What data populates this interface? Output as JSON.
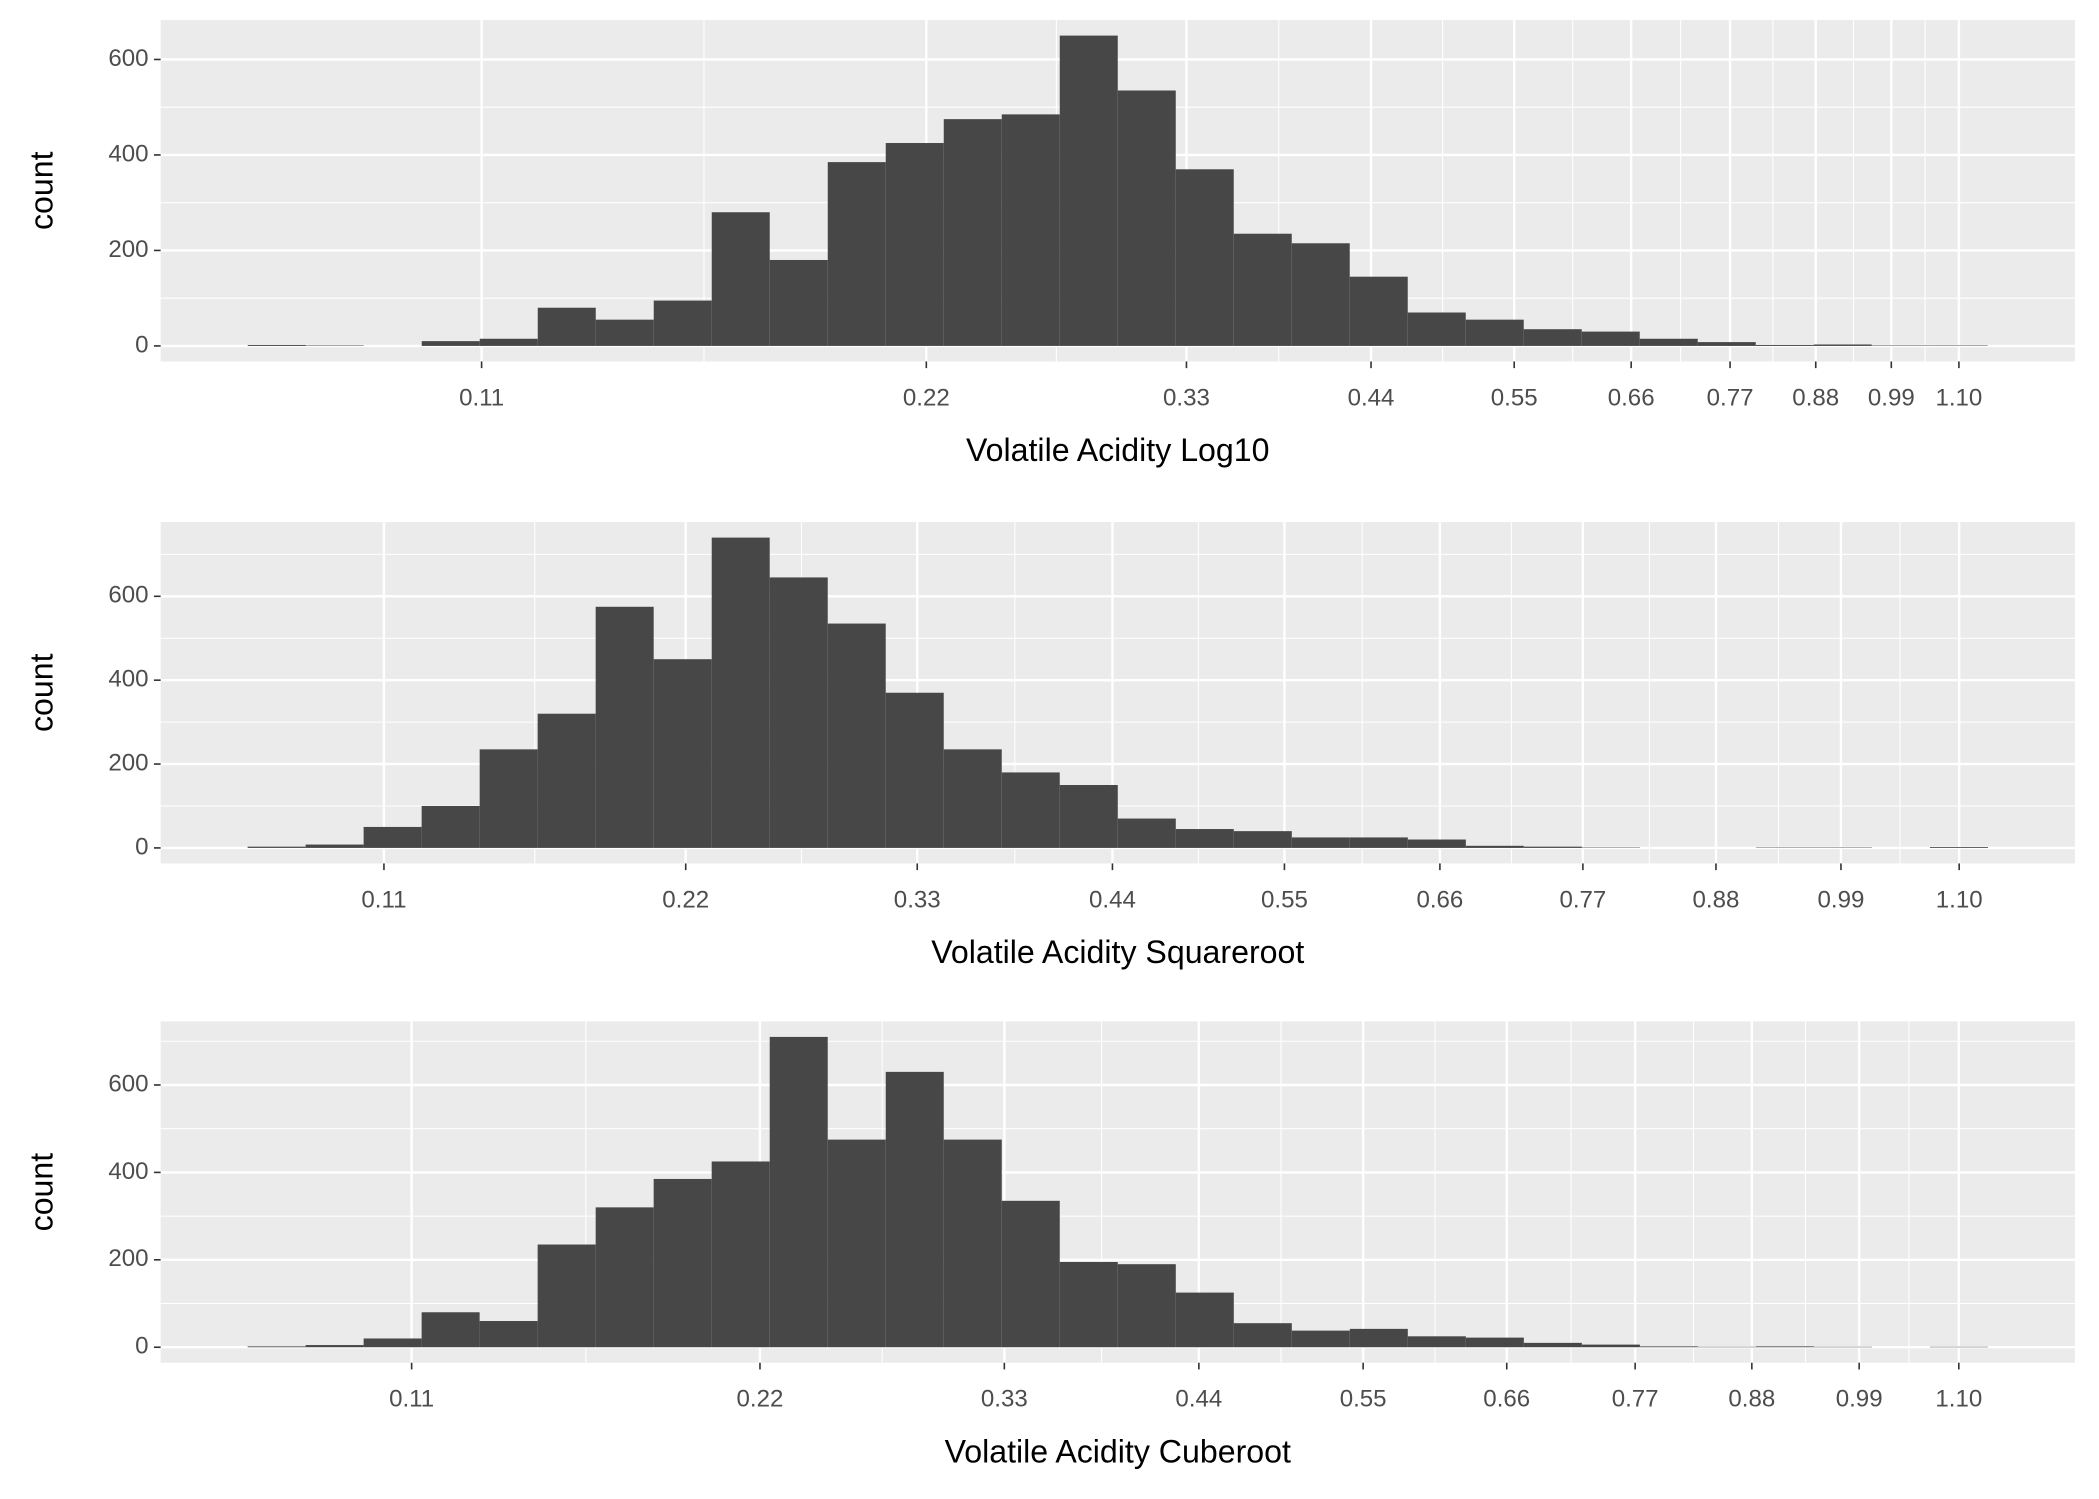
{
  "chart_data": [
    {
      "type": "histogram",
      "x_label": "Volatile Acidity Log10",
      "y_label": "count",
      "x_scale": "log10",
      "color": "#474747",
      "grid": true,
      "bins": [
        0.0764,
        0.08363,
        0.09154,
        0.1002,
        0.10968,
        0.12006,
        0.13142,
        0.14385,
        0.15746,
        0.17236,
        0.18867,
        0.20652,
        0.22606,
        0.24745,
        0.27086,
        0.29649,
        0.32454,
        0.35524,
        0.38885,
        0.42564,
        0.46591,
        0.50999,
        0.55824,
        0.61106,
        0.66887,
        0.73215,
        0.80142,
        0.87723,
        0.96022,
        1.05106,
        1.15049
      ],
      "values": [
        2,
        1,
        0,
        10,
        15,
        80,
        55,
        95,
        280,
        180,
        385,
        425,
        475,
        485,
        650,
        535,
        370,
        235,
        215,
        145,
        70,
        55,
        35,
        30,
        15,
        8,
        2,
        3,
        1,
        1
      ],
      "xlim": [
        0.0667,
        1.318
      ],
      "xticks": [
        0.11,
        0.22,
        0.33,
        0.44,
        0.55,
        0.66,
        0.77,
        0.88,
        0.99,
        {
          "value": 1.1,
          "label": "1.10"
        }
      ],
      "ylim": [
        -32.5,
        682.5
      ],
      "yticks": [
        0,
        200,
        400,
        600
      ]
    },
    {
      "type": "histogram",
      "x_label": "Volatile Acidity Squareroot",
      "y_label": "count",
      "x_scale": "sqrt",
      "color": "#474747",
      "grid": true,
      "bins": [
        0.07268,
        0.08762,
        0.10395,
        0.12168,
        0.14081,
        0.16132,
        0.18323,
        0.20654,
        0.23125,
        0.25734,
        0.28484,
        0.31372,
        0.344,
        0.37568,
        0.40875,
        0.44322,
        0.47909,
        0.51634,
        0.55499,
        0.59504,
        0.63648,
        0.67932,
        0.72355,
        0.76918,
        0.8162,
        0.86462,
        0.91443,
        0.96564,
        1.01824,
        1.07224,
        1.12763
      ],
      "values": [
        3,
        8,
        50,
        100,
        235,
        320,
        575,
        450,
        740,
        645,
        535,
        370,
        235,
        180,
        150,
        70,
        45,
        40,
        25,
        25,
        20,
        5,
        3,
        1,
        0,
        0,
        1,
        1,
        0,
        2
      ],
      "xlim": [
        0.0529,
        1.2133
      ],
      "xticks": [
        0.11,
        0.22,
        0.33,
        0.44,
        0.55,
        0.66,
        0.77,
        0.88,
        0.99,
        {
          "value": 1.1,
          "label": "1.10"
        }
      ],
      "ylim": [
        -37,
        777
      ],
      "yticks": [
        0,
        200,
        400,
        600
      ]
    },
    {
      "type": "histogram",
      "x_label": "Volatile Acidity Cuberoot",
      "y_label": "count",
      "x_scale": "cbrt",
      "color": "#474747",
      "grid": true,
      "bins": [
        0.07435,
        0.08591,
        0.0986,
        0.11248,
        0.12761,
        0.14404,
        0.16183,
        0.18101,
        0.20166,
        0.22383,
        0.24756,
        0.27291,
        0.29993,
        0.32868,
        0.35921,
        0.39158,
        0.42584,
        0.46203,
        0.50022,
        0.54046,
        0.58279,
        0.62731,
        0.67401,
        0.72297,
        0.77429,
        0.82796,
        0.88401,
        0.94257,
        1.00366,
        1.06734,
        1.13365
      ],
      "values": [
        2,
        5,
        20,
        80,
        60,
        235,
        320,
        385,
        425,
        710,
        475,
        630,
        475,
        335,
        195,
        190,
        125,
        55,
        38,
        42,
        25,
        22,
        10,
        6,
        2,
        1,
        2,
        1,
        0,
        1
      ],
      "xlim": [
        0.05905,
        1.2381
      ],
      "xticks": [
        0.11,
        0.22,
        0.33,
        0.44,
        0.55,
        0.66,
        0.77,
        0.88,
        0.99,
        {
          "value": 1.1,
          "label": "1.10"
        }
      ],
      "ylim": [
        -35.5,
        745.5
      ],
      "yticks": [
        0,
        200,
        400,
        600
      ]
    }
  ]
}
